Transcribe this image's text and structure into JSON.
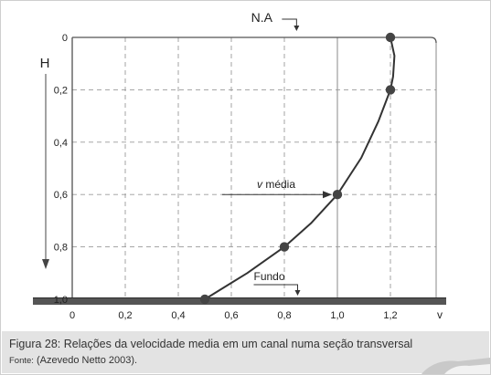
{
  "figure": {
    "caption": "Figura 28: Relações da velocidade media em um canal numa seção transversal",
    "source_label": "Fonte:",
    "source_text": "(Azevedo Netto 2003)."
  },
  "chart_data": {
    "type": "line",
    "x_ticks": [
      "0",
      "0,2",
      "0,4",
      "0,6",
      "0,8",
      "1,0",
      "1,2"
    ],
    "x_tick_values": [
      0,
      0.2,
      0.4,
      0.6,
      0.8,
      1.0,
      1.2
    ],
    "y_ticks": [
      "0",
      "0,2",
      "0,4",
      "0,6",
      "0,8",
      "1,0"
    ],
    "y_tick_values": [
      0,
      0.2,
      0.4,
      0.6,
      0.8,
      1.0
    ],
    "xlabel": "v",
    "ylabel": "H",
    "xlim": [
      0,
      1.3
    ],
    "ylim": [
      0,
      1.0
    ],
    "y_inverted": true,
    "grid": true,
    "points": [
      {
        "x": 1.2,
        "y": 0.0
      },
      {
        "x": 1.2,
        "y": 0.2
      },
      {
        "x": 1.0,
        "y": 0.6
      },
      {
        "x": 0.8,
        "y": 0.8
      },
      {
        "x": 0.5,
        "y": 1.0
      }
    ],
    "curve": [
      {
        "x": 1.2,
        "y": 0.0
      },
      {
        "x": 1.215,
        "y": 0.07
      },
      {
        "x": 1.21,
        "y": 0.15
      },
      {
        "x": 1.2,
        "y": 0.2
      },
      {
        "x": 1.155,
        "y": 0.32
      },
      {
        "x": 1.09,
        "y": 0.46
      },
      {
        "x": 1.0,
        "y": 0.6
      },
      {
        "x": 0.9,
        "y": 0.71
      },
      {
        "x": 0.8,
        "y": 0.8
      },
      {
        "x": 0.66,
        "y": 0.9
      },
      {
        "x": 0.5,
        "y": 1.0
      }
    ],
    "annotations": {
      "surface": {
        "text": "N.A",
        "x": 0.715
      },
      "mean_velocity": {
        "prefix": "v",
        "text": " média",
        "x": 1.0,
        "y": 0.6
      },
      "bottom": {
        "text": "Fundo",
        "x": 0.85
      }
    },
    "colors": {
      "line": "#333333",
      "marker": "#444444",
      "grid": "#9a9a9a",
      "riverbed": "#555555",
      "caption_bg": "#e3e3e3"
    }
  }
}
